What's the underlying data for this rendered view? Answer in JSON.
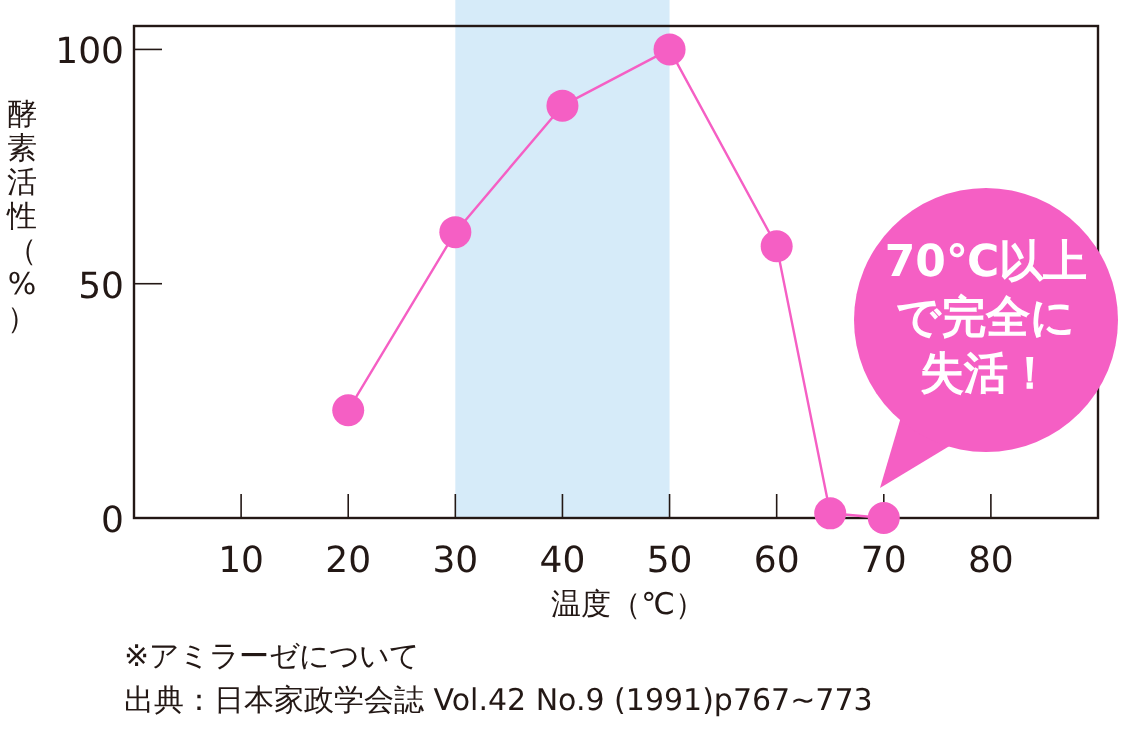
{
  "chart_data": {
    "type": "line",
    "xlabel": "温度（℃）",
    "ylabel": "酵素活性（%）",
    "x": [
      20,
      30,
      40,
      50,
      60,
      65,
      70
    ],
    "series": [
      {
        "color": "#f55fc4",
        "values": [
          23,
          61,
          88,
          100,
          58,
          1,
          0
        ]
      }
    ],
    "xlim": [
      0,
      90
    ],
    "xticks": [
      10,
      20,
      30,
      40,
      50,
      60,
      70,
      80
    ],
    "ylim": [
      0,
      105
    ],
    "yticks": [
      0,
      50,
      100
    ],
    "marker": "circle",
    "line_style": "solid",
    "grid": false,
    "bands": [
      {
        "axis": "x",
        "from": 30,
        "to": 50,
        "color": "#d6ebf9"
      }
    ],
    "annotations": [
      "70℃以上で完全に失活！",
      "※アミラーゼについて",
      "出典：日本家政学会誌 Vol.42 No.9 (1991)p767~773"
    ]
  }
}
